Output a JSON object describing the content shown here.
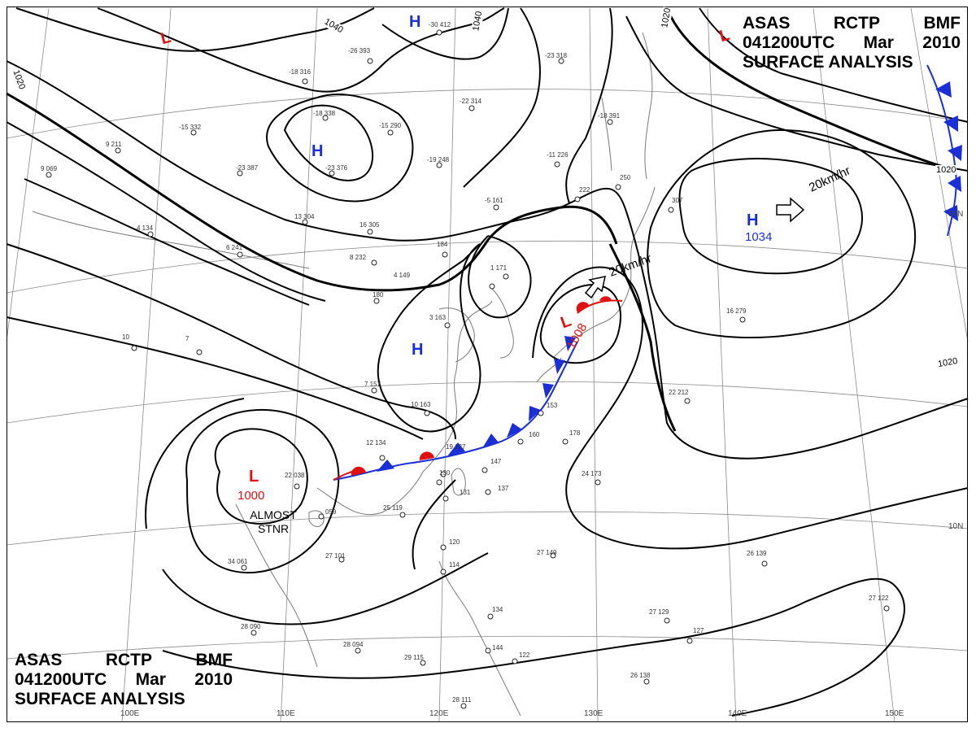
{
  "title_top": {
    "line1": [
      "ASAS",
      "RCTP",
      "BMF"
    ],
    "line2": [
      "041200UTC",
      "Mar",
      "2010"
    ],
    "line3": "SURFACE ANALYSIS"
  },
  "title_bottom": {
    "line1": [
      "ASAS",
      "RCTP",
      "BMF"
    ],
    "line2": [
      "041200UTC",
      "Mar",
      "2010"
    ],
    "line3": "SURFACE ANALYSIS"
  },
  "pressure_centers": [
    {
      "type": "H",
      "value": ""
    },
    {
      "type": "H",
      "value": ""
    },
    {
      "type": "H",
      "value": ""
    },
    {
      "type": "H",
      "value": "1034"
    },
    {
      "type": "L",
      "value": ""
    },
    {
      "type": "L",
      "value": ""
    },
    {
      "type": "L",
      "value": "1000"
    },
    {
      "type": "L",
      "value": "1008"
    }
  ],
  "motion_labels": [
    "20km/hr",
    "20km/hr"
  ],
  "stationary_note": {
    "line1": "ALMOST",
    "line2": "STNR"
  },
  "isobar_labels": [
    "1040",
    "1040",
    "1020",
    "1020",
    "1020",
    "1020"
  ],
  "longitude_labels": [
    "100E",
    "110E",
    "120E",
    "130E",
    "140E",
    "150E"
  ],
  "latitude_labels": [
    "30N",
    "10N"
  ],
  "station_values": [
    "-30 412",
    "-26 393",
    "-18 316",
    "-18 338",
    "-15 332",
    "-23 387",
    "-23 376",
    "-15 290",
    "-22 314",
    "-23 318",
    "-18 391",
    "-19 248",
    "-11 226",
    "-5 161",
    "13 304",
    "16 305",
    "8 232",
    "184",
    "4 149",
    "180",
    "1 171",
    "3 163",
    "7 157",
    "10 163",
    "153",
    "160",
    "178",
    "12 134",
    "19 137",
    "147",
    "137",
    "130",
    "131",
    "25 119",
    "22 038",
    "059",
    "27 101",
    "34 061",
    "28 090",
    "28 094",
    "29 115",
    "120",
    "114",
    "134",
    "144",
    "122",
    "27 149",
    "24 173",
    "26 139",
    "27 129",
    "127",
    "27 122",
    "26 138",
    "28 111",
    "22 212",
    "16 279",
    "250",
    "307",
    "222",
    "10",
    "7",
    "9 211",
    "9 069",
    "4 134",
    "6 241"
  ],
  "colors": {
    "isobar": "#000000",
    "cold_front": "#1a2fd6",
    "warm_front": "#e01010",
    "high": "#1a2fd6",
    "low": "#e01010",
    "grid": "#888888",
    "coast": "#777777"
  }
}
